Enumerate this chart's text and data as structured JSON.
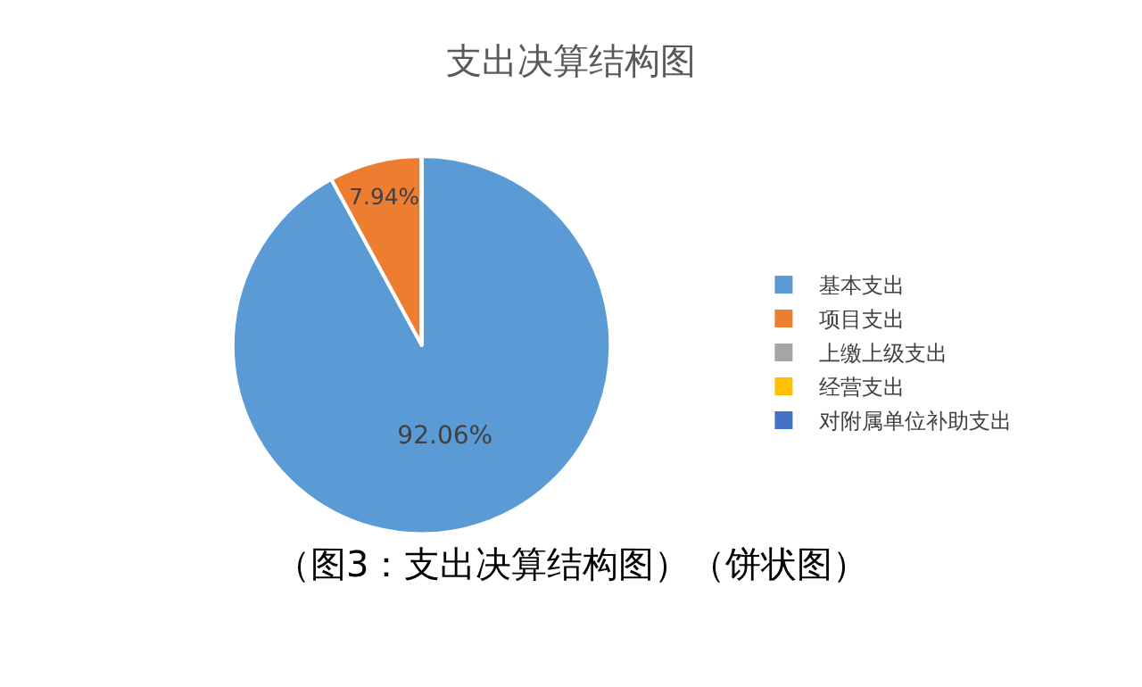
{
  "chart_data": {
    "type": "pie",
    "title": "支出决算结构图",
    "categories": [
      "基本支出",
      "项目支出",
      "上缴上级支出",
      "经营支出",
      "对附属单位补助支出"
    ],
    "values": [
      92.06,
      7.94,
      0,
      0,
      0
    ],
    "colors": [
      "#5b9bd5",
      "#ed7d31",
      "#a5a5a5",
      "#ffc000",
      "#4472c4"
    ],
    "value_labels": [
      "92.06%",
      "7.94%",
      null,
      null,
      null
    ],
    "legend": "right",
    "annotations": [
      "（图3：支出决算结构图）（饼状图）"
    ]
  }
}
